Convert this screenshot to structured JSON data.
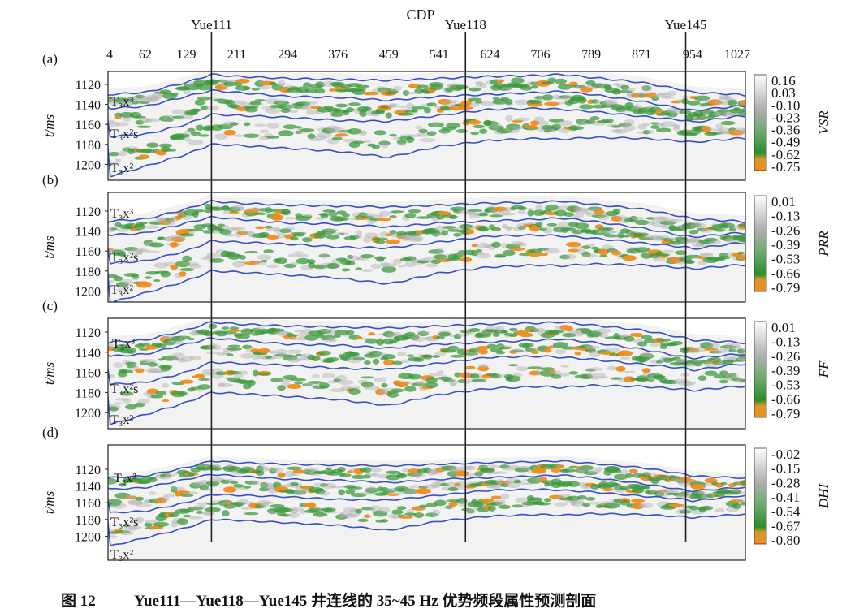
{
  "chart_data": {
    "type": "heatmap",
    "xlabel": "CDP",
    "x_ticks": [
      4,
      62,
      129,
      211,
      294,
      376,
      459,
      541,
      624,
      706,
      789,
      871,
      954,
      1027
    ],
    "xlim": [
      4,
      1040
    ],
    "ylabel": "t/ms",
    "y_ticks": [
      1120,
      1140,
      1160,
      1180,
      1200
    ],
    "wells": [
      {
        "name": "Yue111",
        "cdp": 170
      },
      {
        "name": "Yue118",
        "cdp": 584
      },
      {
        "name": "Yue145",
        "cdp": 943
      }
    ],
    "horizon_labels": [
      "T₃x³",
      "T₃x²s",
      "T₃x²"
    ],
    "horizons": {
      "cdp": [
        4,
        62,
        129,
        170,
        211,
        294,
        376,
        459,
        541,
        624,
        706,
        740,
        789,
        871,
        943,
        954,
        1027,
        1040
      ],
      "top_T3x3": [
        1130,
        1128,
        1118,
        1110,
        1112,
        1114,
        1115,
        1116,
        1114,
        1112,
        1111,
        1110,
        1113,
        1118,
        1126,
        1128,
        1130,
        1131
      ],
      "mid_T3x3": [
        1144,
        1142,
        1132,
        1126,
        1128,
        1132,
        1133,
        1136,
        1132,
        1130,
        1128,
        1127,
        1130,
        1137,
        1145,
        1146,
        1142,
        1142
      ],
      "top_T3x2s": [
        1172,
        1170,
        1160,
        1150,
        1151,
        1153,
        1156,
        1157,
        1151,
        1145,
        1144,
        1145,
        1147,
        1152,
        1156,
        1158,
        1152,
        1152
      ],
      "top_T3x2": [
        1212,
        1202,
        1190,
        1180,
        1181,
        1184,
        1187,
        1193,
        1182,
        1176,
        1174,
        1175,
        1173,
        1174,
        1177,
        1178,
        1174,
        1174
      ]
    },
    "panels": [
      {
        "label": "(a)",
        "attribute": "VSR",
        "colorbar_ticks": [
          "0.16",
          "0.03",
          "-0.10",
          "-0.23",
          "-0.36",
          "-0.49",
          "-0.62",
          "-0.75"
        ]
      },
      {
        "label": "(b)",
        "attribute": "PRR",
        "colorbar_ticks": [
          "0.01",
          "-0.13",
          "-0.26",
          "-0.39",
          "-0.53",
          "-0.66",
          "-0.79"
        ]
      },
      {
        "label": "(c)",
        "attribute": "FF",
        "colorbar_ticks": [
          "0.01",
          "-0.13",
          "-0.26",
          "-0.39",
          "-0.53",
          "-0.66",
          "-0.79"
        ]
      },
      {
        "label": "(d)",
        "attribute": "DHI",
        "colorbar_ticks": [
          "-0.02",
          "-0.15",
          "-0.28",
          "-0.41",
          "-0.54",
          "-0.67",
          "-0.80"
        ]
      }
    ],
    "colormap": [
      "#ffffff",
      "#b0b0b0",
      "#3d9a3d",
      "#2e8b2e",
      "#f08c1e"
    ],
    "horizon_color": "#3a4fc0"
  },
  "caption": {
    "figure_no": "图 12",
    "text": "Yue111—Yue118—Yue145 井连线的 35~45 Hz 优势频段属性预测剖面"
  }
}
